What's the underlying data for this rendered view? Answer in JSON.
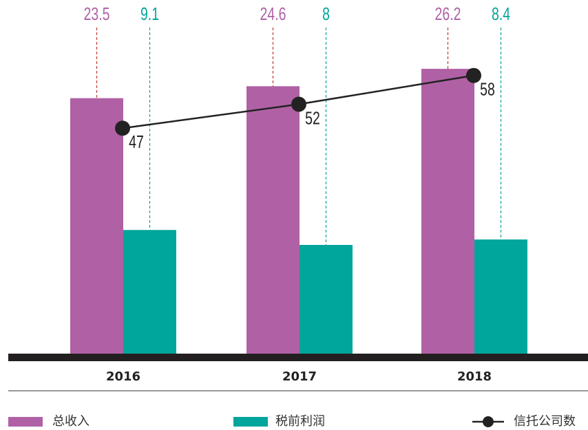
{
  "chart_data": {
    "type": "bar_line",
    "categories": [
      "2016",
      "2017",
      "2018"
    ],
    "series": [
      {
        "name": "总收入",
        "color": "#b061a5",
        "type": "bar",
        "values": [
          23.5,
          24.6,
          26.2
        ]
      },
      {
        "name": "税前利润",
        "color": "#00a59b",
        "type": "bar",
        "axis": "y2",
        "values": [
          9.1,
          8,
          8.4
        ]
      },
      {
        "name": "信托公司数",
        "color": "#222222",
        "type": "line",
        "axis": "y3",
        "values": [
          47,
          52,
          58
        ]
      }
    ],
    "ylim": [
      0,
      30
    ],
    "y2lim": [
      0,
      24
    ],
    "y3lim": [
      0,
      68
    ]
  }
}
